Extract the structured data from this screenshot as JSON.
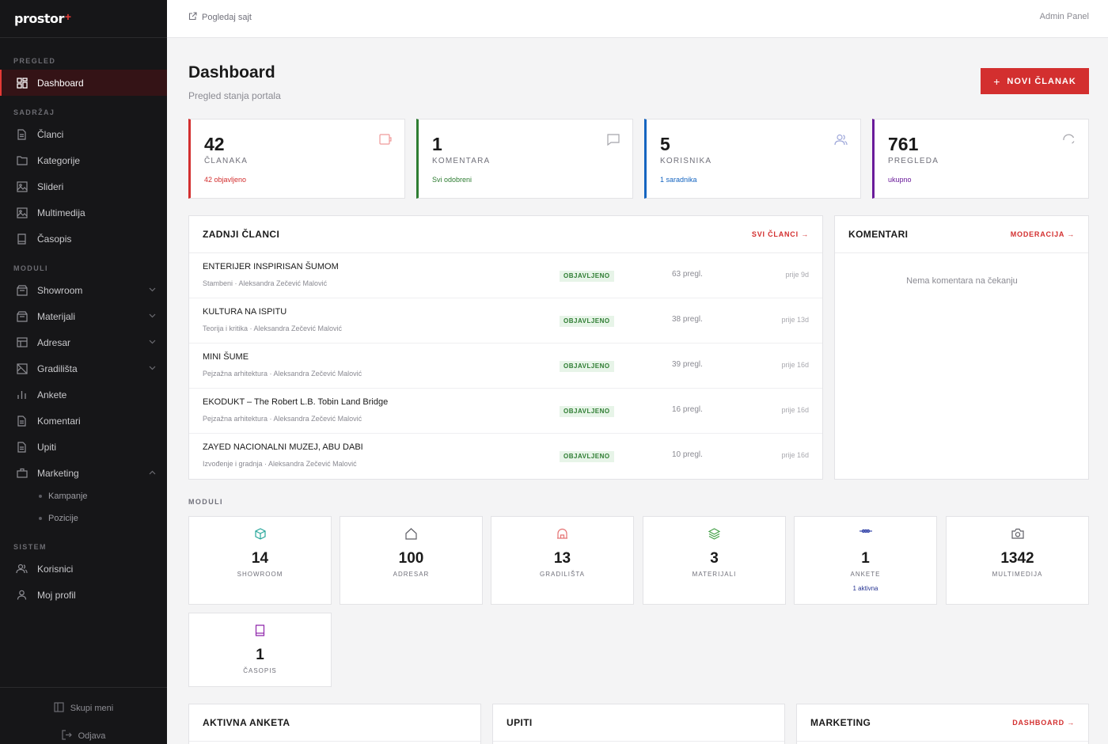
{
  "brand": {
    "name": "prostor",
    "mark": "+"
  },
  "sidebar": {
    "sections": {
      "overview": "PREGLED",
      "content": "SADRŽAJ",
      "modules": "MODULI",
      "system": "SISTEM"
    },
    "items": {
      "dashboard": "Dashboard",
      "clanci": "Članci",
      "kategorije": "Kategorije",
      "slideri": "Slideri",
      "multimedija": "Multimedija",
      "casopis": "Časopis",
      "showroom": "Showroom",
      "materijali": "Materijali",
      "adresar": "Adresar",
      "gradilista": "Gradilišta",
      "ankete": "Ankete",
      "komentari": "Komentari",
      "upiti": "Upiti",
      "marketing": "Marketing",
      "kampanje": "Kampanje",
      "pozicije": "Pozicije",
      "korisnici": "Korisnici",
      "profil": "Moj profil"
    },
    "collapse": "Skupi meni",
    "logout": "Odjava"
  },
  "topbar": {
    "view_site": "Pogledaj sajt",
    "admin": "Admin Panel"
  },
  "header": {
    "title": "Dashboard",
    "subtitle": "Pregled stanja portala",
    "new_button": "NOVI ČLANAK"
  },
  "stats": [
    {
      "value": "42",
      "label": "ČLANAKA",
      "note": "42 objavljeno",
      "color": "#d32f2f"
    },
    {
      "value": "1",
      "label": "KOMENTARA",
      "note": "Svi odobreni",
      "color": "#2e7d32"
    },
    {
      "value": "5",
      "label": "KORISNIKA",
      "note": "1 saradnika",
      "color": "#1565c0"
    },
    {
      "value": "761",
      "label": "PREGLEDA",
      "note": "ukupno",
      "color": "#6a1b9a"
    }
  ],
  "articles": {
    "title": "ZADNJI ČLANCI",
    "link": "SVI ČLANCI →",
    "rows": [
      {
        "title": "ENTERIJER INSPIRISAN ŠUMOM",
        "meta": "Stambeni · Aleksandra Zečević Malović",
        "status": "OBJAVLJENO",
        "views": "63 pregl.",
        "ago": "prije 9d"
      },
      {
        "title": "KULTURA NA ISPITU",
        "meta": "Teorija i kritika · Aleksandra Zečević Malović",
        "status": "OBJAVLJENO",
        "views": "38 pregl.",
        "ago": "prije 13d"
      },
      {
        "title": "MINI ŠUME",
        "meta": "Pejzažna arhitektura · Aleksandra Zečević Malović",
        "status": "OBJAVLJENO",
        "views": "39 pregl.",
        "ago": "prije 16d"
      },
      {
        "title": "EKODUKT – The Robert L.B. Tobin Land Bridge",
        "meta": "Pejzažna arhitektura · Aleksandra Zečević Malović",
        "status": "OBJAVLJENO",
        "views": "16 pregl.",
        "ago": "prije 16d"
      },
      {
        "title": "ZAYED NACIONALNI MUZEJ, ABU DABI",
        "meta": "Izvođenje i gradnja · Aleksandra Zečević Malović",
        "status": "OBJAVLJENO",
        "views": "10 pregl.",
        "ago": "prije 16d"
      }
    ]
  },
  "comments": {
    "title": "KOMENTARI",
    "link": "MODERACIJA →",
    "empty": "Nema komentara na čekanju"
  },
  "modules": {
    "label": "MODULI",
    "items": [
      {
        "value": "14",
        "label": "SHOWROOM",
        "icon": "cube-icon",
        "color": "#26a69a"
      },
      {
        "value": "100",
        "label": "ADRESAR",
        "icon": "home-icon",
        "color": "#5f5f66"
      },
      {
        "value": "13",
        "label": "GRADILIŠTA",
        "icon": "construction-icon",
        "color": "#e57373"
      },
      {
        "value": "3",
        "label": "MATERIJALI",
        "icon": "layers-icon",
        "color": "#43a047"
      },
      {
        "value": "1",
        "label": "ANKETE",
        "icon": "poll-icon",
        "color": "#3949ab",
        "note": "1 aktivna"
      },
      {
        "value": "1342",
        "label": "MULTIMEDIJA",
        "icon": "camera-icon",
        "color": "#5f5f66"
      },
      {
        "value": "1",
        "label": "ČASOPIS",
        "icon": "book-icon",
        "color": "#8e24aa"
      }
    ]
  },
  "bottom_panels": {
    "anketa": "AKTIVNA ANKETA",
    "upiti": "UPITI",
    "marketing": "MARKETING",
    "marketing_link": "DASHBOARD →"
  }
}
